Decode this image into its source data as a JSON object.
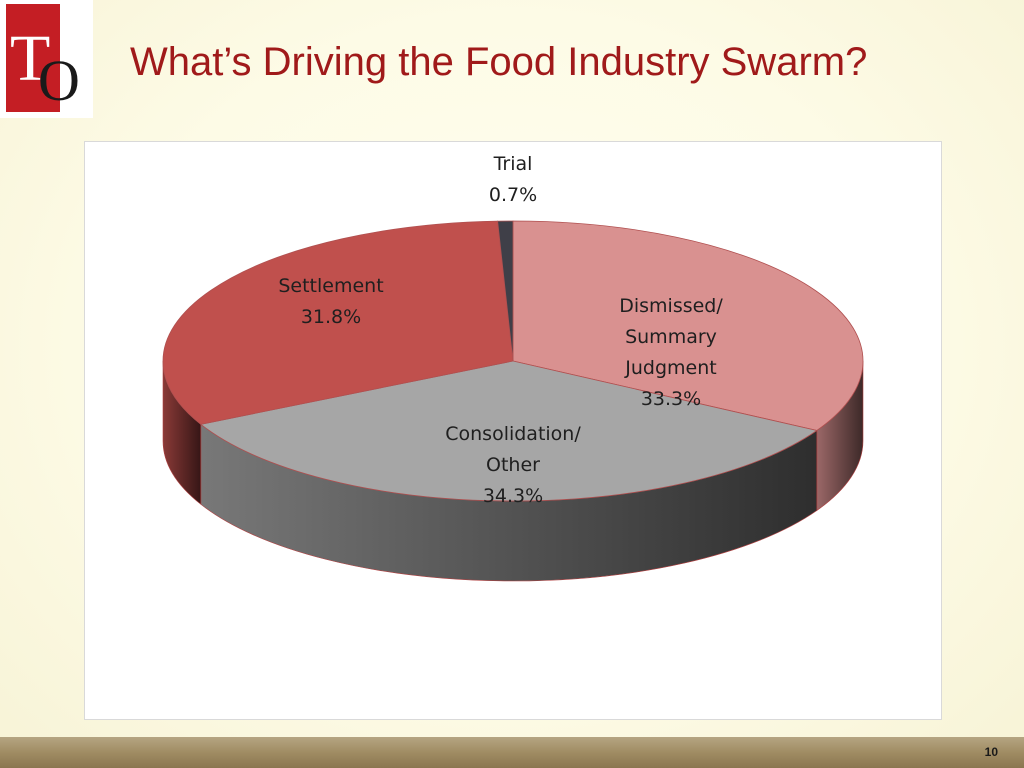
{
  "slide": {
    "title": "What’s Driving the Food Industry Swarm?",
    "page_number": "10"
  },
  "logo": {
    "letters": "TO",
    "color": "#c41e24"
  },
  "chart_data": {
    "type": "pie",
    "style": "3d",
    "slices": [
      {
        "label_lines": [
          "Dismissed/",
          "Summary",
          "Judgment"
        ],
        "pct_label": "33.3%",
        "value": 33.3,
        "color": "#d99190"
      },
      {
        "label_lines": [
          "Consolidation/",
          "Other"
        ],
        "pct_label": "34.3%",
        "value": 34.3,
        "color": "#a6a6a6"
      },
      {
        "label_lines": [
          "Settlement"
        ],
        "pct_label": "31.8%",
        "value": 31.8,
        "color": "#c0504d"
      },
      {
        "label_lines": [
          "Trial"
        ],
        "pct_label": "0.7%",
        "value": 0.7,
        "color": "#3f3f48"
      }
    ]
  }
}
